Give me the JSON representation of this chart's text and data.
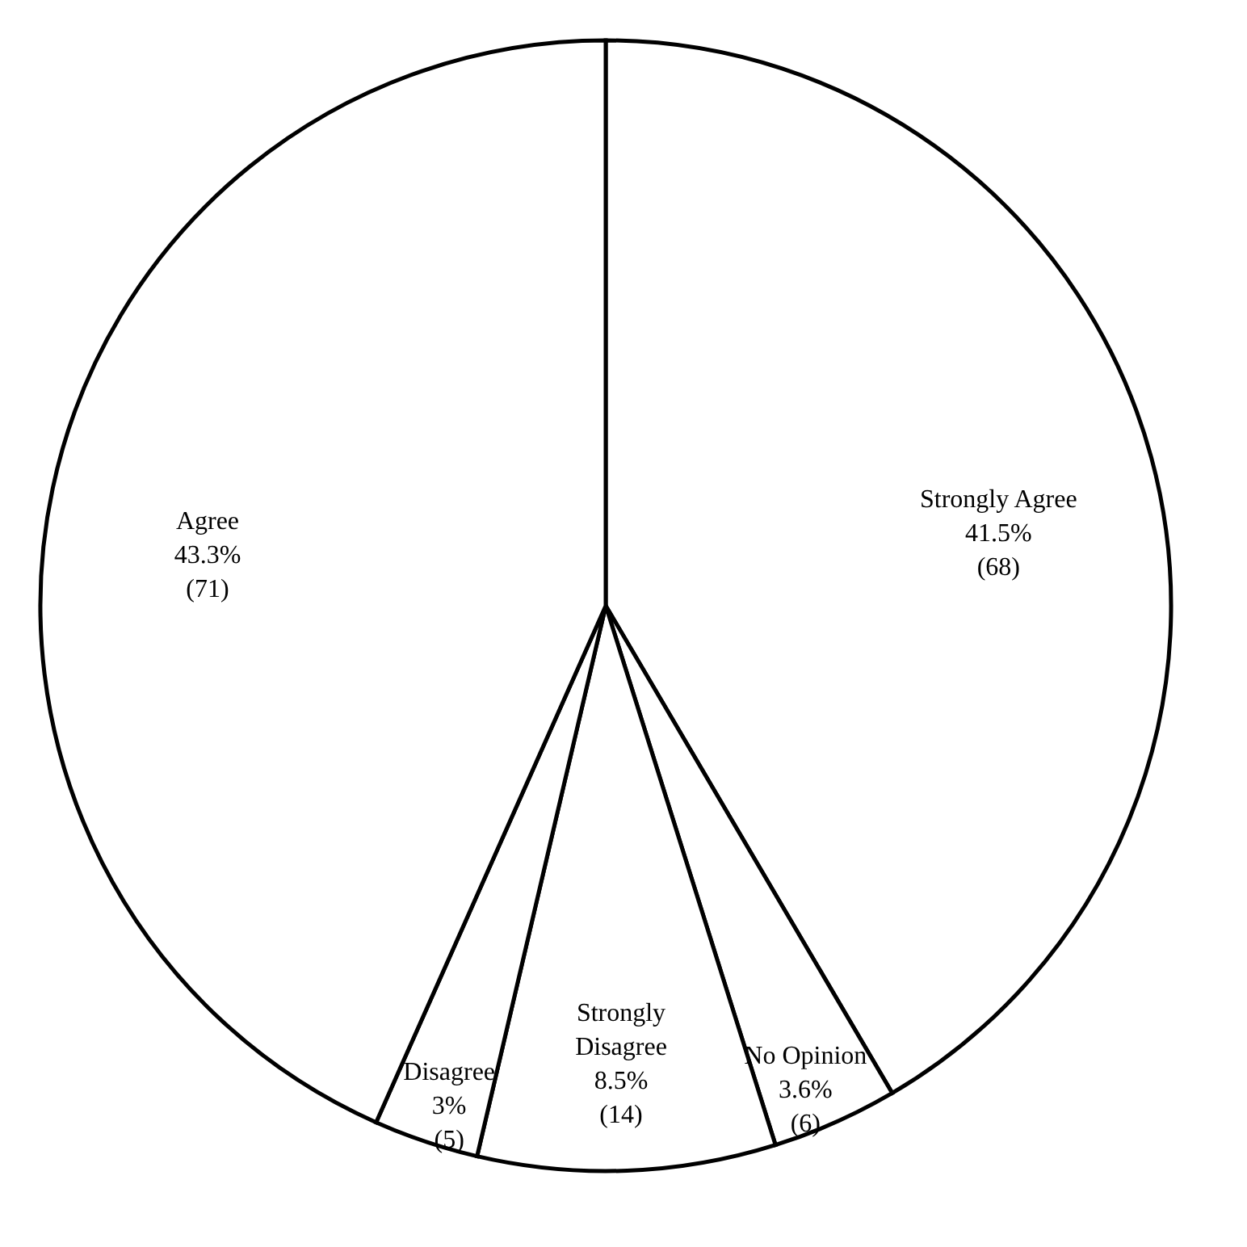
{
  "chart_data": {
    "type": "pie",
    "categories": [
      "Strongly Agree",
      "No Opinion",
      "Strongly Disagree",
      "Disagree",
      "Agree"
    ],
    "values": [
      41.5,
      3.6,
      8.5,
      3,
      43.3
    ],
    "value_labels": [
      [
        "41.5%",
        "(68)"
      ],
      [
        "3.6%",
        "(6)"
      ],
      [
        "8.5%",
        "(14)"
      ],
      [
        "3%",
        "(5)"
      ],
      [
        "43.3%",
        "(71)"
      ]
    ],
    "colors": [
      "#ffffff",
      "#ffffff",
      "#ffffff",
      "#ffffff",
      "#ffffff"
    ],
    "legend": false
  }
}
